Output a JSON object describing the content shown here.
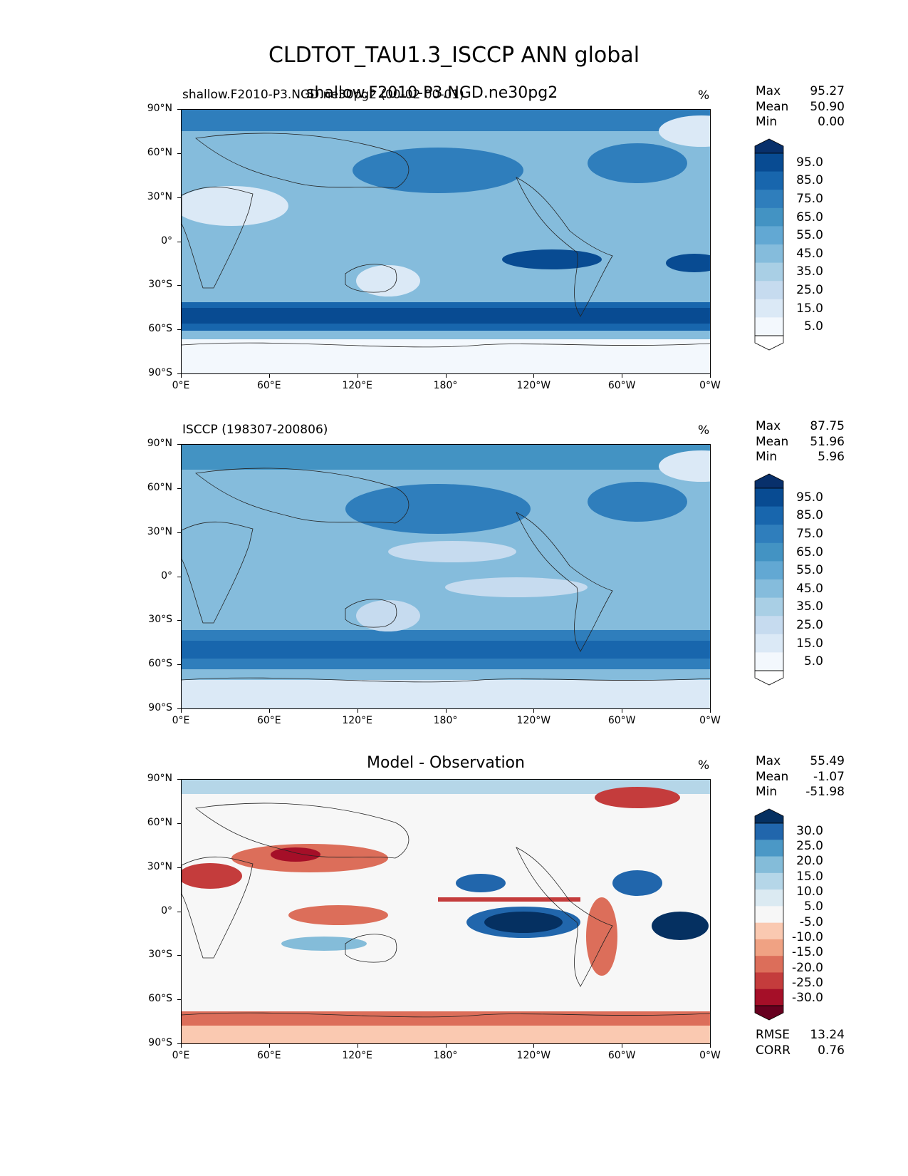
{
  "figure": {
    "suptitle": "CLDTOT_TAU1.3_ISCCP ANN global",
    "overlap_title": "shallow.F2010-P3.NGD.ne30pg2"
  },
  "chart_data": [
    {
      "type": "heatmap",
      "panel": "model",
      "title_left": "shallow.F2010-P3.NGD.ne30pg2 (00-02 00-01)",
      "title_center": "",
      "units": "%",
      "stats": {
        "max_label": "Max",
        "max": "95.27",
        "mean_label": "Mean",
        "mean": "50.90",
        "min_label": "Min",
        "min": "0.00"
      },
      "colorbar_levels": [
        "95.0",
        "85.0",
        "75.0",
        "65.0",
        "55.0",
        "45.0",
        "35.0",
        "25.0",
        "15.0",
        "5.0"
      ],
      "xticks": [
        "0°E",
        "60°E",
        "120°E",
        "180°",
        "120°W",
        "60°W",
        "0°W"
      ],
      "yticks": [
        "90°N",
        "60°N",
        "30°N",
        "0°",
        "30°S",
        "60°S",
        "90°S"
      ],
      "colors": [
        "#ffffff",
        "#f3f8fd",
        "#dbe9f6",
        "#c6dbef",
        "#a9cfe5",
        "#85bcdc",
        "#62a8d3",
        "#4393c3",
        "#2f7ebc",
        "#1866ad",
        "#084b92",
        "#08306b"
      ]
    },
    {
      "type": "heatmap",
      "panel": "observation",
      "title_left": "ISCCP (198307-200806)",
      "title_center": "",
      "units": "%",
      "stats": {
        "max_label": "Max",
        "max": "87.75",
        "mean_label": "Mean",
        "mean": "51.96",
        "min_label": "Min",
        "min": "5.96"
      },
      "colorbar_levels": [
        "95.0",
        "85.0",
        "75.0",
        "65.0",
        "55.0",
        "45.0",
        "35.0",
        "25.0",
        "15.0",
        "5.0"
      ],
      "xticks": [
        "0°E",
        "60°E",
        "120°E",
        "180°",
        "120°W",
        "60°W",
        "0°W"
      ],
      "yticks": [
        "90°N",
        "60°N",
        "30°N",
        "0°",
        "30°S",
        "60°S",
        "90°S"
      ],
      "colors": [
        "#ffffff",
        "#f3f8fd",
        "#dbe9f6",
        "#c6dbef",
        "#a9cfe5",
        "#85bcdc",
        "#62a8d3",
        "#4393c3",
        "#2f7ebc",
        "#1866ad",
        "#084b92",
        "#08306b"
      ]
    },
    {
      "type": "heatmap",
      "panel": "difference",
      "title_left": "",
      "title_center": "Model - Observation",
      "units": "%",
      "stats": {
        "max_label": "Max",
        "max": "55.49",
        "mean_label": "Mean",
        "mean": "-1.07",
        "min_label": "Min",
        "min": "-51.98",
        "rmse_label": "RMSE",
        "rmse": "13.24",
        "corr_label": "CORR",
        "corr": "0.76"
      },
      "colorbar_levels": [
        "30.0",
        "25.0",
        "20.0",
        "15.0",
        "10.0",
        "5.0",
        "-5.0",
        "-10.0",
        "-15.0",
        "-20.0",
        "-25.0",
        "-30.0"
      ],
      "xticks": [
        "0°E",
        "60°E",
        "120°E",
        "180°",
        "120°W",
        "60°W",
        "0°W"
      ],
      "yticks": [
        "90°N",
        "60°N",
        "30°N",
        "0°",
        "30°S",
        "60°S",
        "90°S"
      ],
      "colors": [
        "#67001f",
        "#a50f28",
        "#c43c3c",
        "#dc6e5a",
        "#f0a283",
        "#fac9b1",
        "#f7f7f7",
        "#dbeaf2",
        "#b5d6e8",
        "#84bcd9",
        "#4b98c6",
        "#2166ac",
        "#053061"
      ]
    }
  ]
}
